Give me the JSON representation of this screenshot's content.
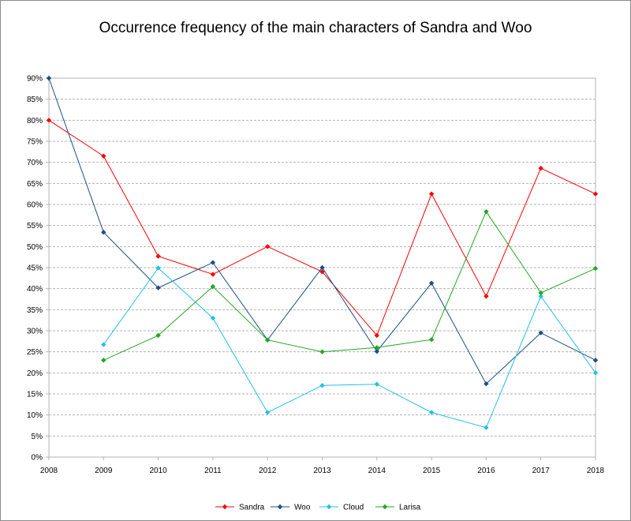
{
  "chart_data": {
    "type": "line",
    "title": "Occurrence frequency of the main characters of Sandra and Woo",
    "xlabel": "",
    "ylabel": "",
    "x": [
      2008,
      2009,
      2010,
      2011,
      2012,
      2013,
      2014,
      2015,
      2016,
      2017,
      2018
    ],
    "ylim": [
      0,
      90
    ],
    "y_ticks": [
      0,
      5,
      10,
      15,
      20,
      25,
      30,
      35,
      40,
      45,
      50,
      55,
      60,
      65,
      70,
      75,
      80,
      85,
      90
    ],
    "y_tick_suffix": "%",
    "grid": true,
    "legend_position": "bottom",
    "series": [
      {
        "name": "Sandra",
        "color": "#ff0000",
        "values": [
          80,
          71.5,
          47.7,
          43.4,
          50,
          44,
          28.9,
          62.5,
          38.2,
          68.6,
          62.5
        ]
      },
      {
        "name": "Woo",
        "color": "#1b4f87",
        "values": [
          90,
          53.4,
          40.2,
          46.2,
          27.8,
          45,
          25.1,
          41.3,
          17.4,
          29.5,
          23
        ]
      },
      {
        "name": "Cloud",
        "color": "#21c0f0",
        "values": [
          null,
          26.7,
          44.9,
          33,
          10.6,
          17,
          17.3,
          10.6,
          7,
          38.2,
          20
        ]
      },
      {
        "name": "Larisa",
        "color": "#22a822",
        "values": [
          null,
          23,
          28.9,
          40.5,
          27.8,
          25,
          26,
          27.9,
          58.3,
          39,
          44.8
        ]
      }
    ]
  }
}
